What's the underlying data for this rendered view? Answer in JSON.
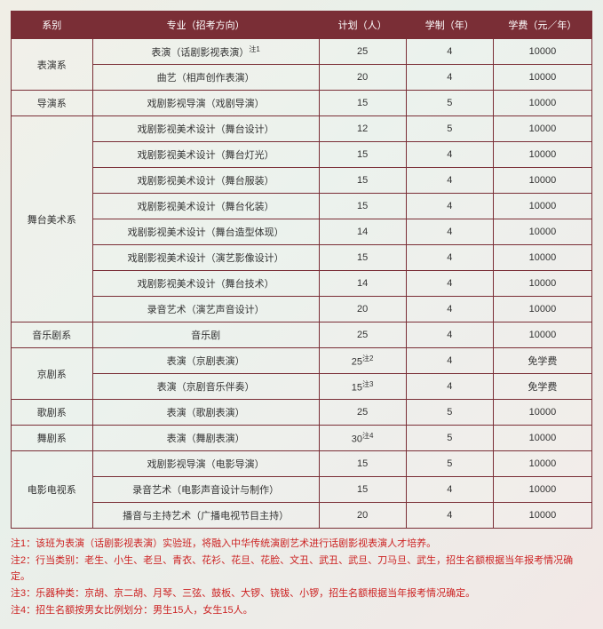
{
  "headers": [
    "系别",
    "专业（招考方向）",
    "计划（人）",
    "学制（年）",
    "学费（元／年）"
  ],
  "groups": [
    {
      "dept": "表演系",
      "rows": [
        {
          "major": "表演（话剧影视表演）",
          "sup": "注1",
          "plan": "25",
          "years": "4",
          "fee": "10000"
        },
        {
          "major": "曲艺（相声创作表演）",
          "plan": "20",
          "years": "4",
          "fee": "10000"
        }
      ]
    },
    {
      "dept": "导演系",
      "rows": [
        {
          "major": "戏剧影视导演（戏剧导演）",
          "plan": "15",
          "years": "5",
          "fee": "10000"
        }
      ]
    },
    {
      "dept": "舞台美术系",
      "rows": [
        {
          "major": "戏剧影视美术设计（舞台设计）",
          "plan": "12",
          "years": "5",
          "fee": "10000"
        },
        {
          "major": "戏剧影视美术设计（舞台灯光）",
          "plan": "15",
          "years": "4",
          "fee": "10000"
        },
        {
          "major": "戏剧影视美术设计（舞台服装）",
          "plan": "15",
          "years": "4",
          "fee": "10000"
        },
        {
          "major": "戏剧影视美术设计（舞台化装）",
          "plan": "15",
          "years": "4",
          "fee": "10000"
        },
        {
          "major": "戏剧影视美术设计（舞台造型体现）",
          "plan": "14",
          "years": "4",
          "fee": "10000"
        },
        {
          "major": "戏剧影视美术设计（演艺影像设计）",
          "plan": "15",
          "years": "4",
          "fee": "10000"
        },
        {
          "major": "戏剧影视美术设计（舞台技术）",
          "plan": "14",
          "years": "4",
          "fee": "10000"
        },
        {
          "major": "录音艺术（演艺声音设计）",
          "plan": "20",
          "years": "4",
          "fee": "10000"
        }
      ]
    },
    {
      "dept": "音乐剧系",
      "rows": [
        {
          "major": "音乐剧",
          "plan": "25",
          "years": "4",
          "fee": "10000"
        }
      ]
    },
    {
      "dept": "京剧系",
      "rows": [
        {
          "major": "表演（京剧表演）",
          "plan": "25",
          "plansup": "注2",
          "years": "4",
          "fee": "免学费"
        },
        {
          "major": "表演（京剧音乐伴奏）",
          "plan": "15",
          "plansup": "注3",
          "years": "4",
          "fee": "免学费"
        }
      ]
    },
    {
      "dept": "歌剧系",
      "rows": [
        {
          "major": "表演（歌剧表演）",
          "plan": "25",
          "years": "5",
          "fee": "10000"
        }
      ]
    },
    {
      "dept": "舞剧系",
      "rows": [
        {
          "major": "表演（舞剧表演）",
          "plan": "30",
          "plansup": "注4",
          "years": "5",
          "fee": "10000"
        }
      ]
    },
    {
      "dept": "电影电视系",
      "rows": [
        {
          "major": "戏剧影视导演（电影导演）",
          "plan": "15",
          "years": "5",
          "fee": "10000"
        },
        {
          "major": "录音艺术（电影声音设计与制作）",
          "plan": "15",
          "years": "4",
          "fee": "10000"
        },
        {
          "major": "播音与主持艺术（广播电视节目主持）",
          "plan": "20",
          "years": "4",
          "fee": "10000"
        }
      ]
    }
  ],
  "notes": [
    "注1：该班为表演（话剧影视表演）实验班，将融入中华传统演剧艺术进行话剧影视表演人才培养。",
    "注2：行当类别：老生、小生、老旦、青衣、花衫、花旦、花脸、文丑、武丑、武旦、刀马旦、武生，招生名额根据当年报考情况确定。",
    "注3：乐器种类：京胡、京二胡、月琴、三弦、鼓板、大锣、铙钹、小锣，招生名额根据当年报考情况确定。",
    "注4：招生名额按男女比例划分：男生15人，女生15人。"
  ]
}
